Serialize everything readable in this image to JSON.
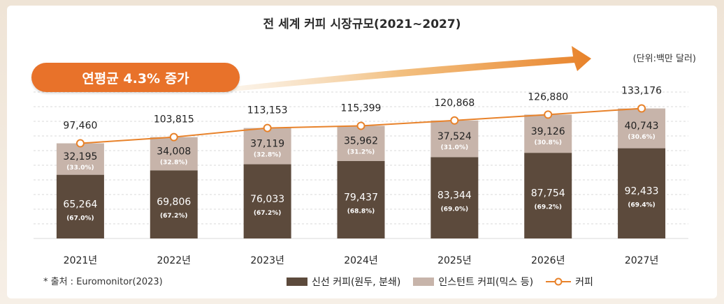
{
  "title": "전 세계 커피 시장규모(2021~2027)",
  "unit": "(단위:백만 달러)",
  "badge": "연평균 4.3% 증가",
  "source": "* 출처 : Euromonitor(2023)",
  "legend": {
    "fresh": "신선 커피(원두, 분쇄)",
    "instant": "인스턴트 커피(믹스 등)",
    "total": "커피"
  },
  "colors": {
    "fresh": "#5c4a3c",
    "instant": "#c7b4aa",
    "line": "#e8822a",
    "badge": "#e8722a"
  },
  "chart_data": {
    "type": "bar",
    "stacked": true,
    "categories": [
      "2021년",
      "2022년",
      "2023년",
      "2024년",
      "2025년",
      "2026년",
      "2027년"
    ],
    "series": [
      {
        "name": "신선 커피(원두, 분쇄)",
        "values": [
          65264,
          69806,
          76033,
          79437,
          83344,
          87754,
          92433
        ],
        "labels": [
          "65,264",
          "69,806",
          "76,033",
          "79,437",
          "83,344",
          "87,754",
          "92,433"
        ],
        "shares": [
          "(67.0%)",
          "(67.2%)",
          "(67.2%)",
          "(68.8%)",
          "(69.0%)",
          "(69.2%)",
          "(69.4%)"
        ]
      },
      {
        "name": "인스턴트 커피(믹스 등)",
        "values": [
          32195,
          34008,
          37119,
          35962,
          37524,
          39126,
          40743
        ],
        "labels": [
          "32,195",
          "34,008",
          "37,119",
          "35,962",
          "37,524",
          "39,126",
          "40,743"
        ],
        "shares": [
          "(33.0%)",
          "(32.8%)",
          "(32.8%)",
          "(31.2%)",
          "(31.0%)",
          "(30.8%)",
          "(30.6%)"
        ]
      }
    ],
    "line": {
      "name": "커피",
      "values": [
        97460,
        103815,
        113153,
        115399,
        120868,
        126880,
        133176
      ],
      "labels": [
        "97,460",
        "103,815",
        "113,153",
        "115,399",
        "120,868",
        "126,880",
        "133,176"
      ]
    },
    "ylim": [
      0,
      150000
    ],
    "grid": true
  }
}
